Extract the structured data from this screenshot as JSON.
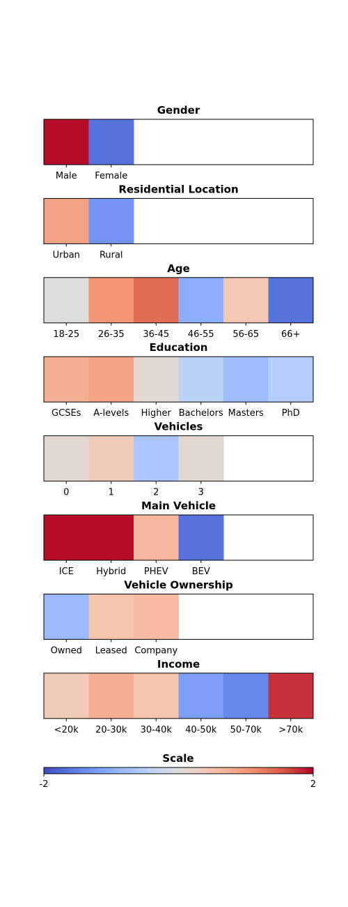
{
  "chart_data": [
    {
      "type": "heatmap",
      "title": "Gender",
      "categories": [
        "Male",
        "Female"
      ],
      "values": [
        1.95,
        -1.65
      ],
      "slots": 6,
      "vlim": [
        -2,
        2
      ]
    },
    {
      "type": "heatmap",
      "title": "Residential Location",
      "categories": [
        "Urban",
        "Rural"
      ],
      "values": [
        0.9,
        -1.3
      ],
      "slots": 6,
      "vlim": [
        -2,
        2
      ]
    },
    {
      "type": "heatmap",
      "title": "Age",
      "categories": [
        "18-25",
        "26-35",
        "36-45",
        "46-55",
        "56-65",
        "66+"
      ],
      "values": [
        0.0,
        1.05,
        1.4,
        -1.0,
        0.45,
        -1.65
      ],
      "slots": 6,
      "vlim": [
        -2,
        2
      ]
    },
    {
      "type": "heatmap",
      "title": "Education",
      "categories": [
        "GCSEs",
        "A-levels",
        "Higher",
        "Bachelors",
        "Masters",
        "PhD"
      ],
      "values": [
        0.75,
        0.9,
        0.1,
        -0.45,
        -0.8,
        -0.55
      ],
      "slots": 6,
      "vlim": [
        -2,
        2
      ]
    },
    {
      "type": "heatmap",
      "title": "Vehicles",
      "categories": [
        "0",
        "1",
        "2",
        "3"
      ],
      "values": [
        0.12,
        0.4,
        -0.65,
        0.12
      ],
      "slots": 6,
      "vlim": [
        -2,
        2
      ]
    },
    {
      "type": "heatmap",
      "title": "Main Vehicle",
      "categories": [
        "ICE",
        "Hybrid",
        "PHEV",
        "BEV"
      ],
      "values": [
        1.95,
        1.95,
        0.65,
        -1.65
      ],
      "slots": 6,
      "vlim": [
        -2,
        2
      ]
    },
    {
      "type": "heatmap",
      "title": "Vehicle Ownership",
      "categories": [
        "Owned",
        "Leased",
        "Company"
      ],
      "values": [
        -0.85,
        0.5,
        0.6
      ],
      "slots": 6,
      "vlim": [
        -2,
        2
      ]
    },
    {
      "type": "heatmap",
      "title": "Income",
      "categories": [
        "<20k",
        "20-30k",
        "30-40k",
        "40-50k",
        "50-70k",
        ">70k"
      ],
      "values": [
        0.4,
        0.75,
        0.5,
        -1.2,
        -1.45,
        1.75
      ],
      "slots": 6,
      "vlim": [
        -2,
        2
      ]
    }
  ],
  "colorbar": {
    "title": "Scale",
    "min_label": "-2",
    "max_label": "2",
    "vlim": [
      -2,
      2
    ],
    "colormap": "coolwarm"
  },
  "colors": {
    "low": "#3b4cc0",
    "mid": "#dddddd",
    "high": "#b40426"
  }
}
